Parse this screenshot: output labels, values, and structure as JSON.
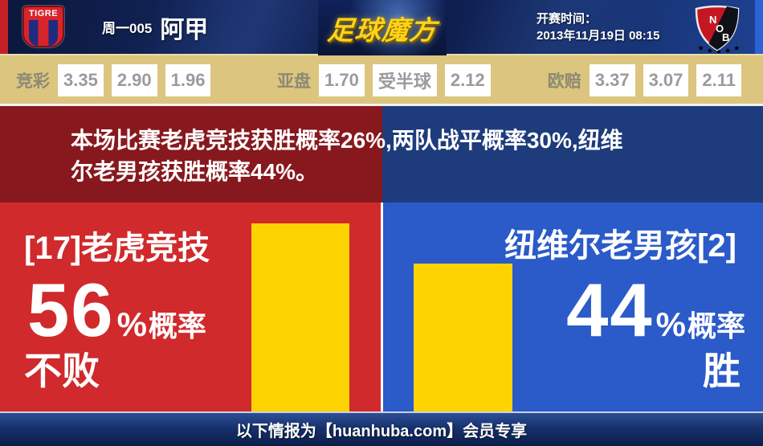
{
  "header": {
    "home_badge_text": "TIGRE",
    "match_code": "周一005",
    "league_name": "阿甲",
    "brand": "足球魔方",
    "kickoff_label": "开赛时间：",
    "kickoff_time": "2013年11月19日 08:15",
    "away_badge_letters": [
      "N",
      "O",
      "B"
    ]
  },
  "odds": {
    "sections": [
      {
        "label": "竞彩",
        "values": [
          "3.35",
          "2.90",
          "1.96"
        ]
      },
      {
        "label": "亚盘",
        "values": [
          "1.70",
          "受半球",
          "2.12"
        ]
      },
      {
        "label": "欧赔",
        "values": [
          "3.37",
          "3.07",
          "2.11"
        ]
      }
    ]
  },
  "summary": {
    "line1": "本场比赛老虎竞技获胜概率26%,两队战平概率30%,纽维",
    "line2": "尔老男孩获胜概率44%。"
  },
  "home_team": {
    "name": "[17]老虎竞技",
    "percent": "56",
    "percent_sign": "%",
    "probability_label": "概率",
    "outcome": "不败"
  },
  "away_team": {
    "name": "纽维尔老男孩[2]",
    "percent": "44",
    "percent_sign": "%",
    "probability_label": "概率",
    "outcome": "胜"
  },
  "footer": {
    "text": "以下情报为【huanhuba.com】会员专享"
  },
  "colors": {
    "home_red": "#d02a2c",
    "home_maroon": "#87191e",
    "away_blue": "#2b5ac9",
    "away_navy": "#1e3b7c",
    "bar_yellow": "#fed302",
    "odds_bg": "#dcc57e",
    "header_navy": "#0d1c48"
  },
  "chart_data": {
    "type": "bar",
    "categories": [
      "老虎竞技 不败",
      "纽维尔老男孩 胜"
    ],
    "values": [
      56,
      44
    ],
    "unit": "%",
    "ylim": [
      0,
      91.5
    ],
    "bar_color": "#fed302",
    "note": "probability bars: home win-or-draw 56%, away win 44%"
  }
}
